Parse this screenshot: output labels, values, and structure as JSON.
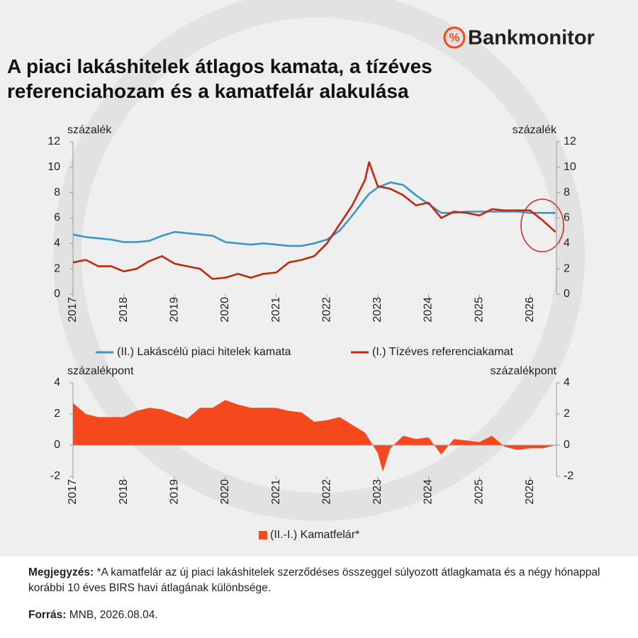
{
  "brand": "Bankmonitor",
  "chart_data": [
    {
      "type": "line",
      "title": "A piaci lakáshitelek átlagos kamata, a tízéves referenciahozam és a kamatfelár alakulása",
      "ylabel": "százalék",
      "y2label": "százalék",
      "x": [
        2017,
        2017.25,
        2017.5,
        2017.75,
        2018,
        2018.25,
        2018.5,
        2018.75,
        2019,
        2019.25,
        2019.5,
        2019.75,
        2020,
        2020.25,
        2020.5,
        2020.75,
        2021,
        2021.25,
        2021.5,
        2021.75,
        2022,
        2022.25,
        2022.5,
        2022.75,
        2022.83,
        2023,
        2023.25,
        2023.5,
        2023.75,
        2024,
        2024.25,
        2024.5,
        2024.75,
        2025,
        2025.25,
        2025.5,
        2025.75,
        2026,
        2026.25,
        2026.5
      ],
      "series": [
        {
          "name": "(II.) Lakáscélú piaci hitelek kamata",
          "color": "#3a95c9",
          "axis": "y",
          "values": [
            4.7,
            4.5,
            4.4,
            4.3,
            4.1,
            4.1,
            4.2,
            4.6,
            4.9,
            4.8,
            4.7,
            4.6,
            4.1,
            4.0,
            3.9,
            4.0,
            3.9,
            3.8,
            3.8,
            4.0,
            4.3,
            5.0,
            6.2,
            7.5,
            7.9,
            8.4,
            8.8,
            8.6,
            7.8,
            7.1,
            6.4,
            6.4,
            6.5,
            6.5,
            6.5,
            6.5,
            6.5,
            6.4,
            6.4,
            6.4
          ]
        },
        {
          "name": "(I.) Tízéves referenciakamat",
          "color": "#c0280f",
          "axis": "y",
          "values": [
            2.5,
            2.7,
            2.2,
            2.2,
            1.8,
            2.0,
            2.6,
            3.0,
            2.4,
            2.2,
            2.0,
            1.2,
            1.3,
            1.6,
            1.3,
            1.6,
            1.7,
            2.5,
            2.7,
            3.0,
            4.0,
            5.5,
            7.0,
            9.0,
            10.4,
            8.5,
            8.3,
            7.8,
            7.0,
            7.2,
            6.0,
            6.5,
            6.4,
            6.2,
            6.7,
            6.6,
            6.6,
            6.6,
            5.8,
            4.9
          ]
        }
      ],
      "xlim": [
        2017,
        2026.52
      ],
      "xticks": [
        2017,
        2018,
        2019,
        2020,
        2021,
        2022,
        2023,
        2024,
        2025,
        2026
      ],
      "ylim": [
        0,
        12
      ],
      "yticks": [
        0,
        2,
        4,
        6,
        8,
        10,
        12
      ],
      "y2lim": [
        0,
        12
      ],
      "y2ticks": [
        0,
        2,
        4,
        6,
        8,
        10,
        12
      ],
      "grid": false
    },
    {
      "type": "area",
      "ylabel": "százalékpont",
      "y2label": "százalékpont",
      "x": [
        2017,
        2017.25,
        2017.5,
        2017.75,
        2018,
        2018.25,
        2018.5,
        2018.75,
        2019,
        2019.25,
        2019.5,
        2019.75,
        2020,
        2020.25,
        2020.5,
        2020.75,
        2021,
        2021.25,
        2021.5,
        2021.75,
        2022,
        2022.25,
        2022.5,
        2022.75,
        2023,
        2023.1,
        2023.25,
        2023.5,
        2023.75,
        2024,
        2024.25,
        2024.5,
        2024.75,
        2025,
        2025.25,
        2025.5,
        2025.75,
        2026,
        2026.25,
        2026.5
      ],
      "series": [
        {
          "name": "(II.-I.) Kamatfelár*",
          "color": "#f5481c",
          "values": [
            2.7,
            2.0,
            1.8,
            1.8,
            1.8,
            2.2,
            2.4,
            2.3,
            2.0,
            1.7,
            2.4,
            2.4,
            2.9,
            2.6,
            2.4,
            2.4,
            2.4,
            2.2,
            2.1,
            1.5,
            1.6,
            1.8,
            1.3,
            0.8,
            -0.5,
            -1.7,
            -0.2,
            0.6,
            0.4,
            0.5,
            -0.6,
            0.4,
            0.3,
            0.2,
            0.6,
            -0.1,
            -0.3,
            -0.2,
            -0.2,
            0.0
          ]
        }
      ],
      "xlim": [
        2017,
        2026.52
      ],
      "xticks": [
        2017,
        2018,
        2019,
        2020,
        2021,
        2022,
        2023,
        2024,
        2025,
        2026
      ],
      "ylim": [
        -2,
        4
      ],
      "yticks": [
        -2,
        0,
        2,
        4
      ],
      "y2lim": [
        -2,
        4
      ],
      "y2ticks": [
        -2,
        0,
        2,
        4
      ],
      "grid": false
    }
  ],
  "footer": {
    "note_label": "Megjegyzés:",
    "note": "*A kamatfelár az új piaci lakáshitelek szerződéses összeggel súlyozott átlagkamata és a négy hónappal korábbi 10 éves BIRS havi átlagának különbsége.",
    "source_label": "Forrás:",
    "source": "MNB, 2026.08.04."
  }
}
